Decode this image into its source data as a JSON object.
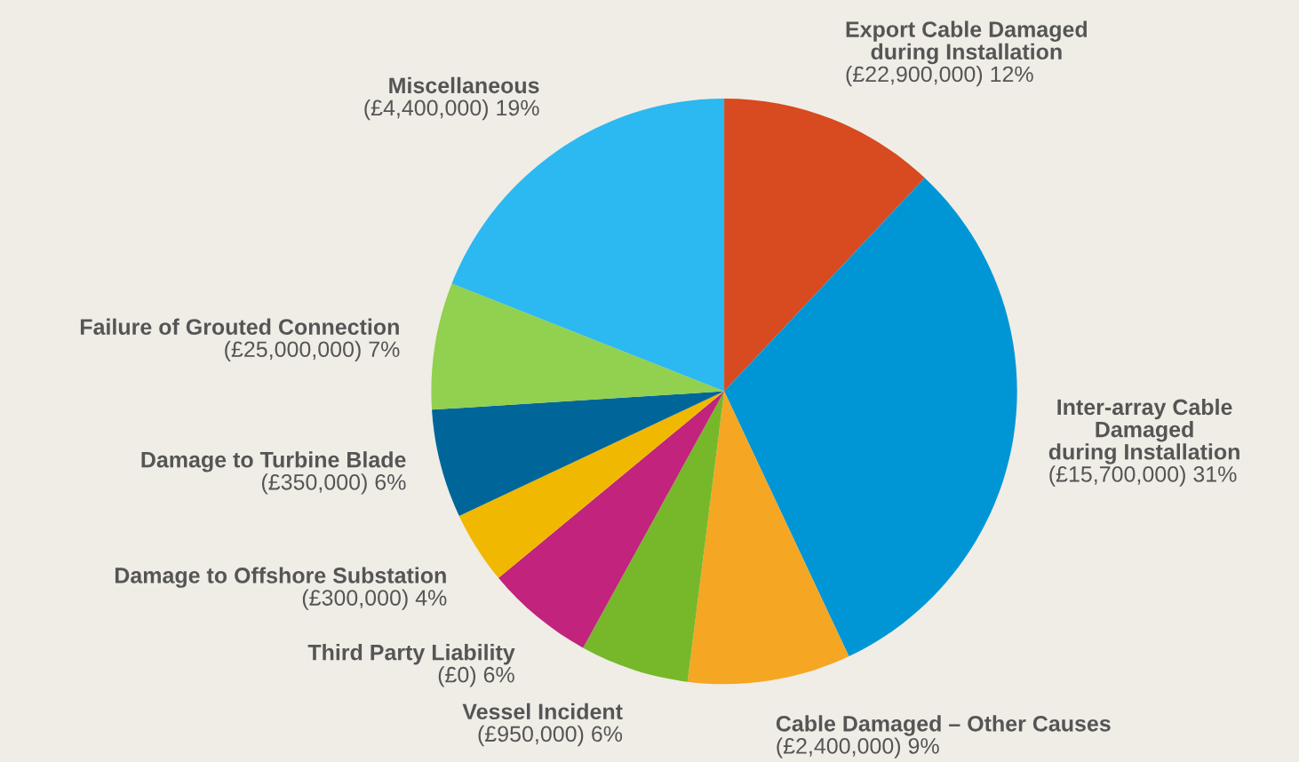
{
  "chart_data": {
    "type": "pie",
    "categories": [
      "Export Cable Damaged\nduring Installation",
      "Inter-array Cable\nDamaged\nduring Installation",
      "Cable Damaged – Other Causes",
      "Vessel Incident",
      "Third Party Liability",
      "Damage to Offshore Substation",
      "Damage to Turbine Blade",
      "Failure of Grouted Connection",
      "Miscellaneous"
    ],
    "values": [
      12,
      31,
      9,
      6,
      6,
      4,
      6,
      7,
      19
    ],
    "value_labels": [
      "(£22,900,000) 12%",
      "(£15,700,000) 31%",
      "(£2,400,000) 9%",
      "(£950,000) 6%",
      "(£0) 6%",
      "(£300,000) 4%",
      "(£350,000) 6%",
      "(£25,000,000) 7%",
      "(£4,400,000) 19%"
    ],
    "colors": [
      "#d84a1f",
      "#0096d6",
      "#f5a623",
      "#76b82a",
      "#c1237d",
      "#f0b800",
      "#006699",
      "#92d050",
      "#2cb8f0"
    ],
    "legend": false
  }
}
